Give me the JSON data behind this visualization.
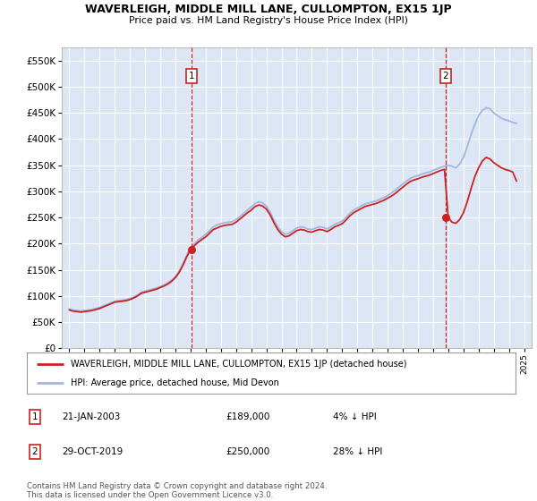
{
  "title": "WAVERLEIGH, MIDDLE MILL LANE, CULLOMPTON, EX15 1JP",
  "subtitle": "Price paid vs. HM Land Registry's House Price Index (HPI)",
  "legend_line1": "WAVERLEIGH, MIDDLE MILL LANE, CULLOMPTON, EX15 1JP (detached house)",
  "legend_line2": "HPI: Average price, detached house, Mid Devon",
  "transactions": [
    {
      "num": 1,
      "date": "21-JAN-2003",
      "price": "£189,000",
      "pct": "4% ↓ HPI",
      "year": 2003.05
    },
    {
      "num": 2,
      "date": "29-OCT-2019",
      "price": "£250,000",
      "pct": "28% ↓ HPI",
      "year": 2019.83
    }
  ],
  "footer": "Contains HM Land Registry data © Crown copyright and database right 2024.\nThis data is licensed under the Open Government Licence v3.0.",
  "ylim": [
    0,
    575000
  ],
  "yticks": [
    0,
    50000,
    100000,
    150000,
    200000,
    250000,
    300000,
    350000,
    400000,
    450000,
    500000,
    550000
  ],
  "plot_bg": "#dce6f5",
  "hpi_color": "#a0b8e0",
  "price_color": "#cc2222",
  "dashed_color": "#cc2222",
  "marker_color": "#cc2222",
  "hpi_data": {
    "years": [
      1995.0,
      1995.25,
      1995.5,
      1995.75,
      1996.0,
      1996.25,
      1996.5,
      1996.75,
      1997.0,
      1997.25,
      1997.5,
      1997.75,
      1998.0,
      1998.25,
      1998.5,
      1998.75,
      1999.0,
      1999.25,
      1999.5,
      1999.75,
      2000.0,
      2000.25,
      2000.5,
      2000.75,
      2001.0,
      2001.25,
      2001.5,
      2001.75,
      2002.0,
      2002.25,
      2002.5,
      2002.75,
      2003.0,
      2003.25,
      2003.5,
      2003.75,
      2004.0,
      2004.25,
      2004.5,
      2004.75,
      2005.0,
      2005.25,
      2005.5,
      2005.75,
      2006.0,
      2006.25,
      2006.5,
      2006.75,
      2007.0,
      2007.25,
      2007.5,
      2007.75,
      2008.0,
      2008.25,
      2008.5,
      2008.75,
      2009.0,
      2009.25,
      2009.5,
      2009.75,
      2010.0,
      2010.25,
      2010.5,
      2010.75,
      2011.0,
      2011.25,
      2011.5,
      2011.75,
      2012.0,
      2012.25,
      2012.5,
      2012.75,
      2013.0,
      2013.25,
      2013.5,
      2013.75,
      2014.0,
      2014.25,
      2014.5,
      2014.75,
      2015.0,
      2015.25,
      2015.5,
      2015.75,
      2016.0,
      2016.25,
      2016.5,
      2016.75,
      2017.0,
      2017.25,
      2017.5,
      2017.75,
      2018.0,
      2018.25,
      2018.5,
      2018.75,
      2019.0,
      2019.25,
      2019.5,
      2019.75,
      2020.0,
      2020.25,
      2020.5,
      2020.75,
      2021.0,
      2021.25,
      2021.5,
      2021.75,
      2022.0,
      2022.25,
      2022.5,
      2022.75,
      2023.0,
      2023.25,
      2023.5,
      2023.75,
      2024.0,
      2024.25,
      2024.5
    ],
    "values": [
      75000,
      73000,
      72000,
      71000,
      72000,
      73000,
      74000,
      76000,
      78000,
      81000,
      84000,
      87000,
      90000,
      91000,
      92000,
      93000,
      95000,
      98000,
      102000,
      107000,
      109000,
      111000,
      113000,
      115000,
      118000,
      121000,
      125000,
      130000,
      137000,
      148000,
      162000,
      178000,
      192000,
      200000,
      207000,
      212000,
      218000,
      225000,
      232000,
      236000,
      238000,
      240000,
      241000,
      242000,
      246000,
      252000,
      258000,
      264000,
      270000,
      277000,
      280000,
      278000,
      272000,
      260000,
      245000,
      232000,
      223000,
      218000,
      220000,
      225000,
      230000,
      232000,
      231000,
      228000,
      227000,
      230000,
      232000,
      231000,
      228000,
      232000,
      237000,
      240000,
      243000,
      250000,
      258000,
      264000,
      268000,
      272000,
      276000,
      278000,
      280000,
      282000,
      285000,
      288000,
      292000,
      297000,
      302000,
      308000,
      314000,
      320000,
      325000,
      328000,
      330000,
      333000,
      335000,
      337000,
      340000,
      343000,
      346000,
      348000,
      350000,
      348000,
      345000,
      352000,
      365000,
      385000,
      408000,
      428000,
      445000,
      455000,
      460000,
      458000,
      450000,
      445000,
      440000,
      437000,
      435000,
      432000,
      430000
    ]
  },
  "price_data": {
    "years": [
      1995.0,
      1995.25,
      1995.5,
      1995.75,
      1996.0,
      1996.25,
      1996.5,
      1996.75,
      1997.0,
      1997.25,
      1997.5,
      1997.75,
      1998.0,
      1998.25,
      1998.5,
      1998.75,
      1999.0,
      1999.25,
      1999.5,
      1999.75,
      2000.0,
      2000.25,
      2000.5,
      2000.75,
      2001.0,
      2001.25,
      2001.5,
      2001.75,
      2002.0,
      2002.25,
      2002.5,
      2002.75,
      2003.0,
      2003.25,
      2003.5,
      2003.75,
      2004.0,
      2004.25,
      2004.5,
      2004.75,
      2005.0,
      2005.25,
      2005.5,
      2005.75,
      2006.0,
      2006.25,
      2006.5,
      2006.75,
      2007.0,
      2007.25,
      2007.5,
      2007.75,
      2008.0,
      2008.25,
      2008.5,
      2008.75,
      2009.0,
      2009.25,
      2009.5,
      2009.75,
      2010.0,
      2010.25,
      2010.5,
      2010.75,
      2011.0,
      2011.25,
      2011.5,
      2011.75,
      2012.0,
      2012.25,
      2012.5,
      2012.75,
      2013.0,
      2013.25,
      2013.5,
      2013.75,
      2014.0,
      2014.25,
      2014.5,
      2014.75,
      2015.0,
      2015.25,
      2015.5,
      2015.75,
      2016.0,
      2016.25,
      2016.5,
      2016.75,
      2017.0,
      2017.25,
      2017.5,
      2017.75,
      2018.0,
      2018.25,
      2018.5,
      2018.75,
      2019.0,
      2019.25,
      2019.5,
      2019.75,
      2020.0,
      2020.25,
      2020.5,
      2020.75,
      2021.0,
      2021.25,
      2021.5,
      2021.75,
      2022.0,
      2022.25,
      2022.5,
      2022.75,
      2023.0,
      2023.25,
      2023.5,
      2023.75,
      2024.0,
      2024.25,
      2024.5
    ],
    "values": [
      73000,
      71000,
      70000,
      69000,
      70000,
      71000,
      72000,
      74000,
      76000,
      79000,
      82000,
      85000,
      88000,
      89000,
      90000,
      91000,
      93000,
      96000,
      100000,
      105000,
      107000,
      109000,
      111000,
      113000,
      116000,
      119000,
      123000,
      128000,
      135000,
      145000,
      159000,
      175000,
      189000,
      196000,
      203000,
      208000,
      213000,
      220000,
      227000,
      230000,
      233000,
      235000,
      236000,
      237000,
      241000,
      247000,
      253000,
      259000,
      264000,
      271000,
      274000,
      272000,
      266000,
      255000,
      240000,
      227000,
      218000,
      213000,
      215000,
      220000,
      225000,
      227000,
      226000,
      223000,
      222000,
      225000,
      227000,
      226000,
      223000,
      227000,
      232000,
      235000,
      238000,
      245000,
      253000,
      259000,
      263000,
      267000,
      271000,
      273000,
      275000,
      277000,
      280000,
      283000,
      287000,
      291000,
      296000,
      302000,
      308000,
      314000,
      319000,
      322000,
      324000,
      327000,
      329000,
      331000,
      334000,
      337000,
      340000,
      342000,
      250000,
      241000,
      239000,
      246000,
      259000,
      280000,
      305000,
      328000,
      345000,
      358000,
      365000,
      362000,
      355000,
      350000,
      345000,
      342000,
      340000,
      337000,
      320000
    ]
  },
  "sale_points": [
    [
      2003.05,
      189000
    ],
    [
      2019.83,
      250000
    ]
  ],
  "xlim": [
    1994.5,
    2025.5
  ],
  "xtick_years": [
    1995,
    1996,
    1997,
    1998,
    1999,
    2000,
    2001,
    2002,
    2003,
    2004,
    2005,
    2006,
    2007,
    2008,
    2009,
    2010,
    2011,
    2012,
    2013,
    2014,
    2015,
    2016,
    2017,
    2018,
    2019,
    2020,
    2021,
    2022,
    2023,
    2024,
    2025
  ]
}
